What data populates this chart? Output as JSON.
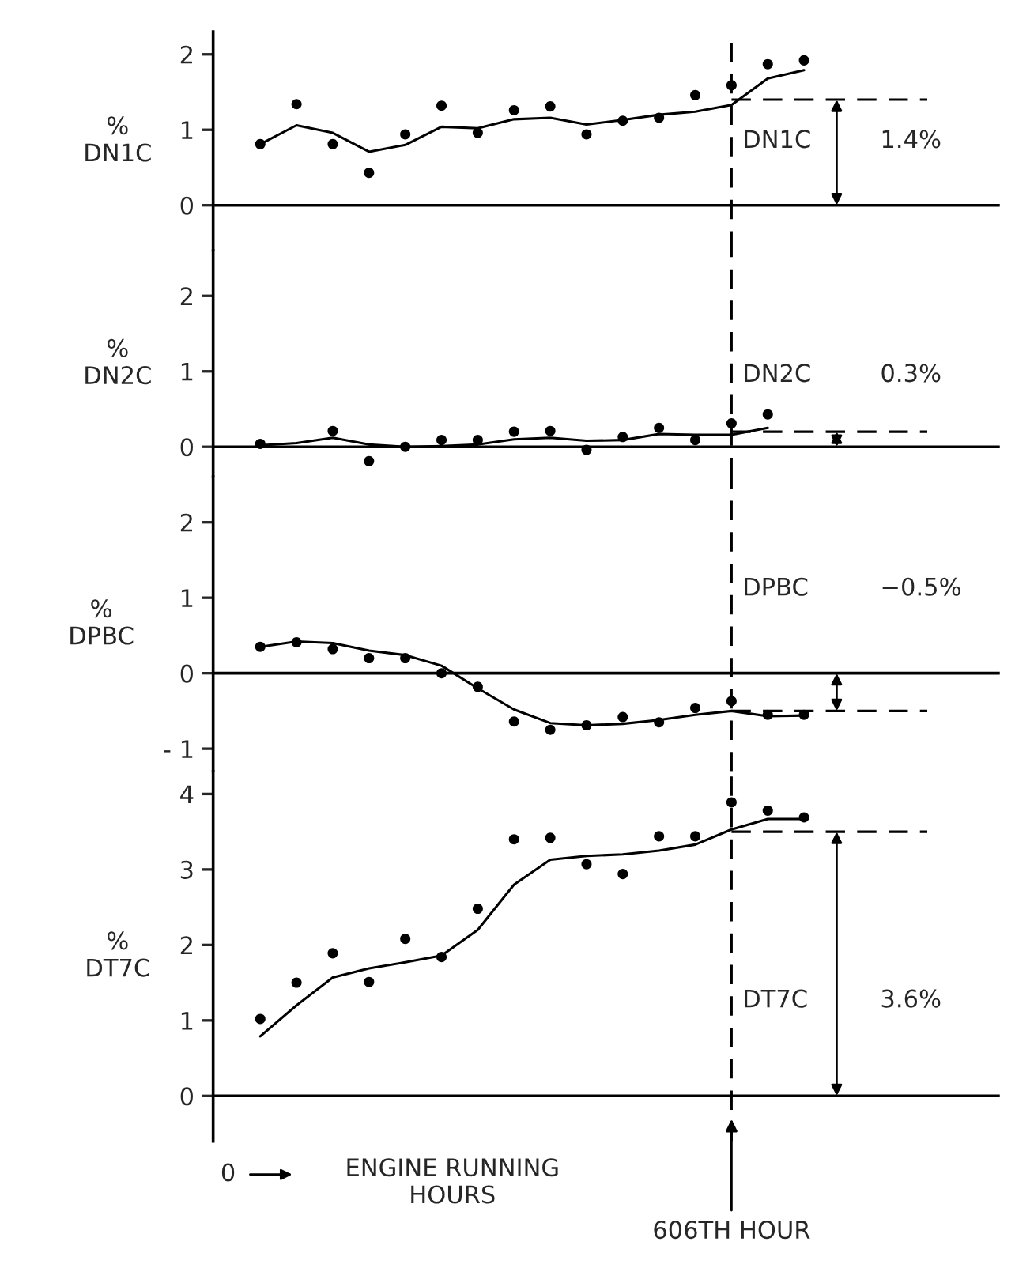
{
  "chart_data": [
    {
      "type": "scatter",
      "categories": [
        null,
        null,
        null,
        null,
        null,
        null,
        null,
        null,
        null,
        null,
        null,
        null,
        null,
        null,
        null,
        null
      ],
      "ylabel": "%\nDN1C",
      "ylim": [
        -0.6,
        2.3
      ],
      "yticks": [
        0,
        1,
        2
      ],
      "tick_labels": "y",
      "grid": false,
      "legend": false,
      "series": [
        {
          "color": "#000000",
          "marker": "circle",
          "values": [
            0.81,
            1.34,
            0.81,
            0.43,
            0.94,
            1.32,
            0.96,
            1.26,
            1.31,
            0.94,
            1.12,
            1.16,
            1.46,
            1.59,
            1.87,
            1.92
          ]
        },
        {
          "type": "line",
          "color": "#000000",
          "marker": "none",
          "line_style": "solid",
          "values": [
            0.81,
            1.06,
            0.96,
            0.71,
            0.8,
            1.04,
            1.02,
            1.14,
            1.16,
            1.07,
            1.13,
            1.2,
            1.24,
            1.33,
            1.68,
            1.79
          ]
        }
      ],
      "ref_lines": [
        {
          "axis": "y",
          "value": 0,
          "color": "#000000",
          "line_style": "solid"
        },
        {
          "axis": "y",
          "value": 1.4,
          "color": "#000000",
          "line_style": "dashed"
        }
      ],
      "annotations": [
        "DN1C",
        "1.4%"
      ]
    },
    {
      "type": "scatter",
      "categories": [
        null,
        null,
        null,
        null,
        null,
        null,
        null,
        null,
        null,
        null,
        null,
        null,
        null,
        null,
        null,
        null
      ],
      "ylabel": "%\nDN2C",
      "ylim": [
        -0.4,
        2.6
      ],
      "yticks": [
        0,
        1,
        2
      ],
      "tick_labels": "y",
      "grid": false,
      "legend": false,
      "series": [
        {
          "color": "#000000",
          "marker": "circle",
          "values": [
            0.04,
            null,
            0.21,
            -0.19,
            0.0,
            0.09,
            0.09,
            0.2,
            0.21,
            -0.04,
            0.13,
            0.25,
            0.09,
            0.31,
            0.43,
            null
          ]
        },
        {
          "type": "line",
          "color": "#000000",
          "marker": "none",
          "line_style": "solid",
          "values": [
            0.02,
            0.05,
            0.12,
            0.03,
            0.0,
            0.01,
            0.03,
            0.1,
            0.12,
            0.08,
            0.09,
            0.17,
            0.16,
            0.16,
            0.25,
            null
          ]
        }
      ],
      "ref_lines": [
        {
          "axis": "y",
          "value": 0,
          "color": "#000000",
          "line_style": "solid"
        },
        {
          "axis": "y",
          "value": 0.2,
          "color": "#000000",
          "line_style": "dashed"
        }
      ],
      "annotations": [
        "DN2C",
        "0.3%"
      ]
    },
    {
      "type": "scatter",
      "categories": [
        null,
        null,
        null,
        null,
        null,
        null,
        null,
        null,
        null,
        null,
        null,
        null,
        null,
        null,
        null,
        null
      ],
      "ylabel": "%\nDPBC",
      "ylim": [
        -1.3,
        2.6
      ],
      "yticks": [
        {
          "value": -1,
          "label": "- 1"
        },
        0,
        1,
        2
      ],
      "tick_labels": "y",
      "grid": false,
      "legend": false,
      "series": [
        {
          "color": "#000000",
          "marker": "circle",
          "values": [
            0.35,
            0.41,
            0.32,
            0.2,
            0.2,
            0.0,
            -0.18,
            -0.64,
            -0.75,
            -0.69,
            -0.58,
            -0.65,
            -0.46,
            -0.37,
            -0.55,
            -0.55
          ]
        },
        {
          "type": "line",
          "color": "#000000",
          "marker": "none",
          "line_style": "solid",
          "values": [
            0.35,
            0.42,
            0.4,
            0.3,
            0.24,
            0.1,
            -0.2,
            -0.48,
            -0.66,
            -0.69,
            -0.67,
            -0.62,
            -0.55,
            -0.5,
            -0.57,
            -0.56
          ]
        }
      ],
      "ref_lines": [
        {
          "axis": "y",
          "value": 0,
          "color": "#000000",
          "line_style": "solid"
        },
        {
          "axis": "y",
          "value": -0.5,
          "color": "#000000",
          "line_style": "dashed"
        }
      ],
      "annotations": [
        "DPBC",
        "−0.5%"
      ]
    },
    {
      "type": "scatter",
      "categories": [
        null,
        null,
        null,
        null,
        null,
        null,
        null,
        null,
        null,
        null,
        null,
        null,
        null,
        null,
        null,
        null
      ],
      "ylabel": "%\nDT7C",
      "ylim": [
        -0.6,
        4.3
      ],
      "yticks": [
        0,
        1,
        2,
        3,
        4
      ],
      "tick_labels": "y",
      "grid": false,
      "legend": false,
      "xlabel": "ENGINE RUNNING\nHOURS",
      "series": [
        {
          "color": "#000000",
          "marker": "circle",
          "values": [
            1.02,
            1.5,
            1.89,
            1.51,
            2.08,
            1.84,
            2.48,
            3.4,
            3.42,
            3.07,
            2.94,
            3.44,
            3.44,
            3.89,
            3.78,
            3.69
          ]
        },
        {
          "type": "line",
          "color": "#000000",
          "marker": "none",
          "line_style": "solid",
          "values": [
            0.79,
            1.2,
            1.57,
            1.69,
            1.77,
            1.86,
            2.2,
            2.8,
            3.13,
            3.18,
            3.2,
            3.25,
            3.33,
            3.53,
            3.67,
            3.67
          ]
        }
      ],
      "ref_lines": [
        {
          "axis": "y",
          "value": 0,
          "color": "#000000",
          "line_style": "solid"
        },
        {
          "axis": "y",
          "value": 3.5,
          "color": "#000000",
          "line_style": "dashed"
        }
      ],
      "annotations": [
        "DT7C",
        "3.6%",
        "0",
        "606TH HOUR"
      ]
    }
  ]
}
